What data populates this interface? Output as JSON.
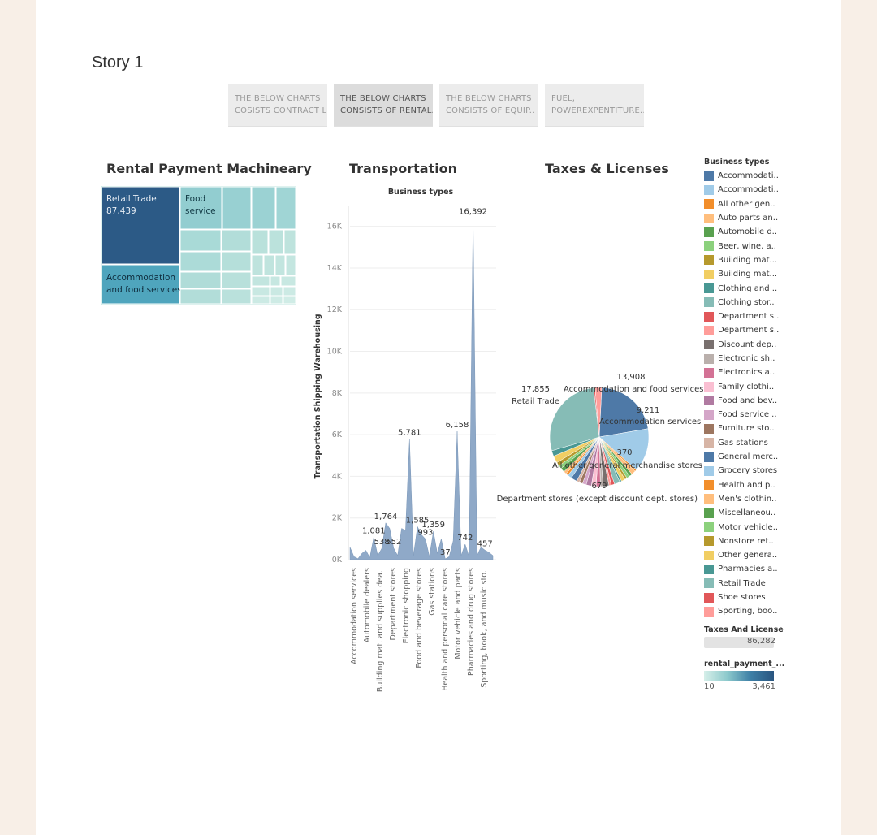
{
  "story": {
    "title": "Story 1",
    "tabs": [
      {
        "line1": "THE BELOW CHARTS",
        "line2": "COSISTS CONTRACT L.."
      },
      {
        "line1": "THE BELOW CHARTS",
        "line2": "CONSISTS OF RENTAL.."
      },
      {
        "line1": "THE BELOW CHARTS",
        "line2": "CONSISTS OF EQUIP.."
      },
      {
        "line1": "FUEL,",
        "line2": "POWEREXPENTITURE.."
      }
    ]
  },
  "treemap": {
    "title": "Rental Payment Machineary",
    "cells": [
      {
        "label": "Retail Trade",
        "value": "87,439",
        "color": "#2c5a86"
      },
      {
        "label": "Food service",
        "value": "",
        "color": "#92cdd0"
      },
      {
        "label": "Accommodation and food services",
        "value": "",
        "color": "#4fa5bd"
      }
    ]
  },
  "area": {
    "title": "Transportation",
    "header": "Business types",
    "ylabel": "Transportation Shipping Warehousing",
    "yticks": [
      "0K",
      "2K",
      "4K",
      "6K",
      "8K",
      "10K",
      "12K",
      "14K",
      "16K"
    ],
    "xlabels": [
      "Accommodation services",
      "Automobile dealers",
      "Building mat. and supplies dea..",
      "Department stores",
      "Electronic shopping",
      "Food and beverage stores",
      "Gas stations",
      "Health and personal care stores",
      "Motor vehicle and parts",
      "Pharmacies and drug stores",
      "Sporting, book, and music sto.."
    ],
    "annotations": [
      "16,392",
      "5,781",
      "6,158",
      "1,764",
      "1,585",
      "1,359",
      "1,081",
      "993",
      "538",
      "552",
      "457",
      "37",
      "742"
    ]
  },
  "pie": {
    "title": "Taxes & Licenses",
    "labels": [
      "13,908",
      "Accommodation and food services",
      "17,855",
      "Retail Trade",
      "9,211",
      "Accommodation services",
      "370",
      "All other general merchandise stores",
      "679",
      "Department stores (except discount dept. stores)"
    ]
  },
  "legend": {
    "title": "Business types",
    "items": [
      {
        "label": "Accommodati..",
        "color": "#4e79a7"
      },
      {
        "label": "Accommodati..",
        "color": "#a0cbe8"
      },
      {
        "label": "All other gen..",
        "color": "#f28e2b"
      },
      {
        "label": "Auto parts an..",
        "color": "#ffbe7d"
      },
      {
        "label": "Automobile d..",
        "color": "#59a14f"
      },
      {
        "label": "Beer, wine, a..",
        "color": "#8cd17d"
      },
      {
        "label": "Building mat...",
        "color": "#b6992d"
      },
      {
        "label": "Building mat...",
        "color": "#f1ce63"
      },
      {
        "label": "Clothing and ..",
        "color": "#499894"
      },
      {
        "label": "Clothing stor..",
        "color": "#86bcb6"
      },
      {
        "label": "Department s..",
        "color": "#e15759"
      },
      {
        "label": "Department s..",
        "color": "#ff9d9a"
      },
      {
        "label": "Discount dep..",
        "color": "#79706e"
      },
      {
        "label": "Electronic sh..",
        "color": "#bab0ac"
      },
      {
        "label": "Electronics a..",
        "color": "#d37295"
      },
      {
        "label": "Family clothi..",
        "color": "#fabfd2"
      },
      {
        "label": "Food and bev..",
        "color": "#b07aa1"
      },
      {
        "label": "Food service ..",
        "color": "#d4a6c8"
      },
      {
        "label": "Furniture sto..",
        "color": "#9d7660"
      },
      {
        "label": "Gas stations",
        "color": "#d7b5a6"
      },
      {
        "label": "General merc..",
        "color": "#4e79a7"
      },
      {
        "label": "Grocery stores",
        "color": "#a0cbe8"
      },
      {
        "label": "Health and p..",
        "color": "#f28e2b"
      },
      {
        "label": "Men's clothin..",
        "color": "#ffbe7d"
      },
      {
        "label": "Miscellaneou..",
        "color": "#59a14f"
      },
      {
        "label": "Motor vehicle..",
        "color": "#8cd17d"
      },
      {
        "label": "Nonstore ret..",
        "color": "#b6992d"
      },
      {
        "label": "Other genera..",
        "color": "#f1ce63"
      },
      {
        "label": "Pharmacies a..",
        "color": "#499894"
      },
      {
        "label": "Retail Trade",
        "color": "#86bcb6"
      },
      {
        "label": "Shoe stores",
        "color": "#e15759"
      },
      {
        "label": "Sporting, boo..",
        "color": "#ff9d9a"
      }
    ],
    "size_title": "Taxes And License",
    "size_value": "86,282",
    "color_title": "rental_payment_...",
    "color_min": "10",
    "color_max": "3,461"
  },
  "chart_data": [
    {
      "type": "heatmap",
      "title": "Rental Payment Machineary",
      "categories": [
        "Retail Trade",
        "Accommodation and food services",
        "Food service"
      ],
      "values": [
        87439,
        null,
        null
      ]
    },
    {
      "type": "area",
      "title": "Transportation",
      "xlabel": "Business types",
      "ylabel": "Transportation Shipping Warehousing",
      "ylim": [
        0,
        17000
      ],
      "categories": [
        "Accommodation services",
        "Automobile dealers",
        "Building mat. and supplies dea..",
        "Department stores",
        "Electronic shopping",
        "Food and beverage stores",
        "Gas stations",
        "Health and personal care stores",
        "Motor vehicle and parts",
        "Pharmacies and drug stores",
        "Sporting, book, and music sto.."
      ],
      "x": [
        0,
        2,
        4,
        6,
        8,
        10,
        12,
        14,
        16,
        18,
        20,
        22,
        24,
        26,
        28,
        30,
        32,
        34,
        36,
        38,
        40,
        42,
        44,
        46,
        48,
        50,
        52,
        54,
        56,
        58,
        60,
        62,
        64,
        66,
        68,
        70,
        72
      ],
      "values": [
        600,
        150,
        50,
        300,
        450,
        100,
        1081,
        200,
        538,
        1764,
        1500,
        552,
        200,
        1500,
        1400,
        5781,
        200,
        1585,
        1200,
        993,
        150,
        1359,
        300,
        1000,
        37,
        150,
        900,
        6158,
        200,
        742,
        150,
        16392,
        200,
        600,
        457,
        350,
        200
      ],
      "grid": true
    },
    {
      "type": "pie",
      "title": "Taxes & Licenses",
      "labels": [
        "Accommodation and food services",
        "Accommodation services",
        "All other general merchandise stores",
        "Department stores (except discount dept. stores)",
        "Retail Trade"
      ],
      "values": [
        13908,
        9211,
        370,
        679,
        17855
      ]
    }
  ]
}
